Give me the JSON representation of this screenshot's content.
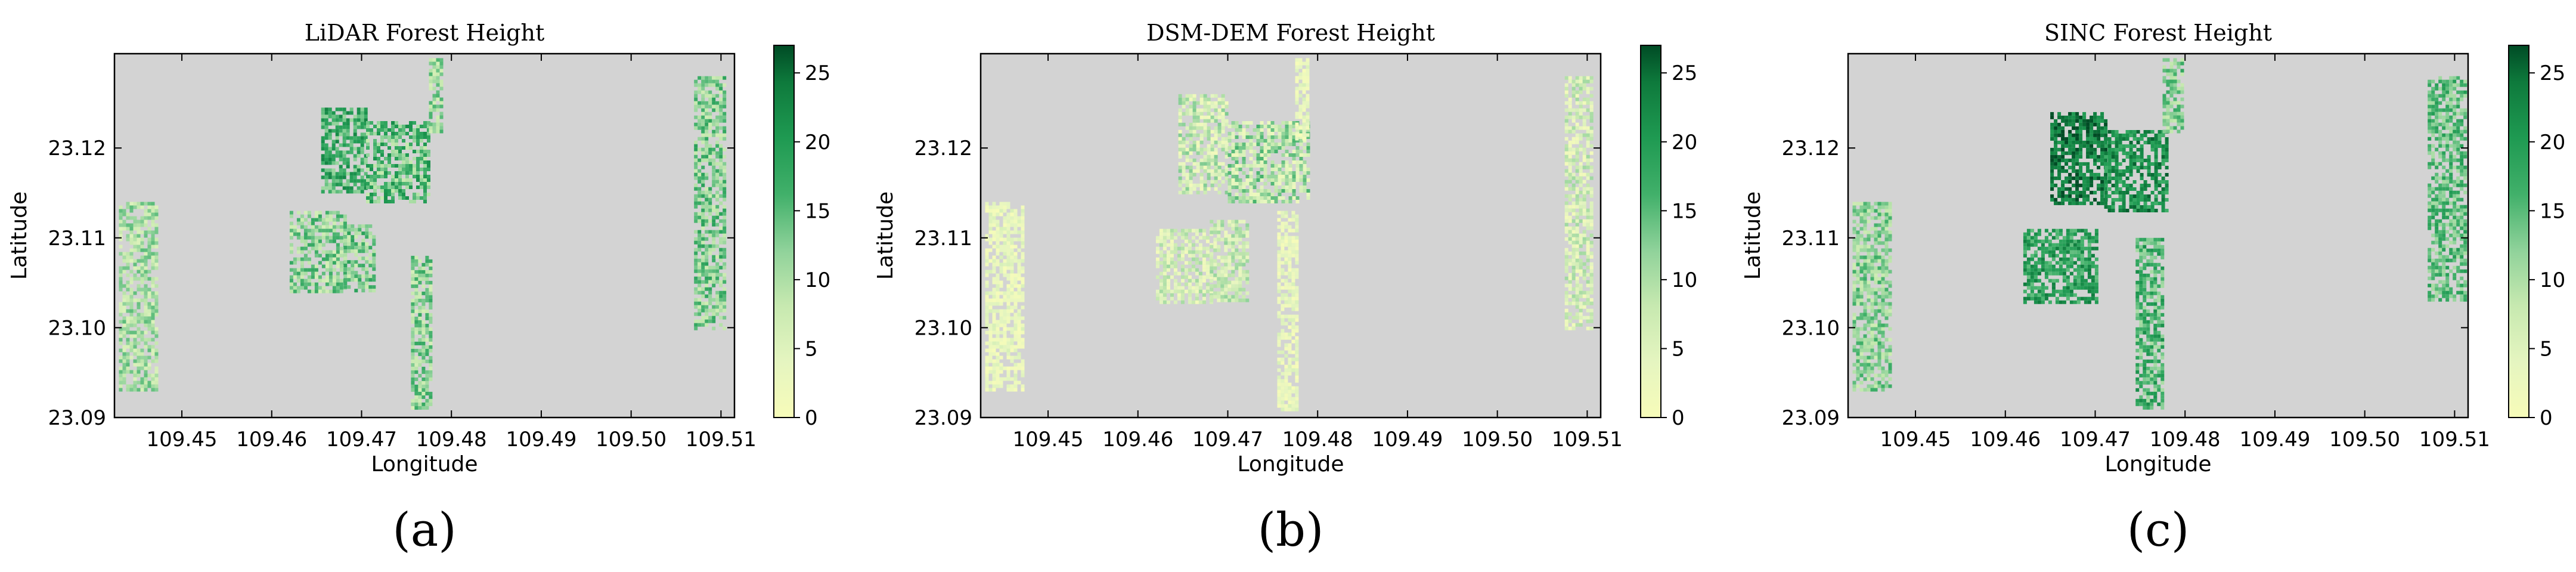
{
  "chart_data": [
    {
      "type": "heatmap",
      "panel_label": "(a)",
      "title": "LiDAR Forest Height",
      "xlabel": "Longitude",
      "ylabel": "Latitude",
      "x_ticks": [
        "109.45",
        "109.46",
        "109.47",
        "109.48",
        "109.49",
        "109.50",
        "109.51"
      ],
      "y_ticks": [
        "23.09",
        "23.10",
        "23.11",
        "23.12"
      ],
      "xlim": [
        109.4425,
        109.5115
      ],
      "ylim": [
        23.09,
        23.1305
      ],
      "background_color": "#d3d3d3",
      "colorbar": {
        "ticks": [
          "0",
          "5",
          "10",
          "15",
          "20",
          "25"
        ],
        "range": [
          0,
          27
        ],
        "colormap": "Greens"
      },
      "regions": [
        {
          "lon": [
            109.4655,
            109.4705
          ],
          "lat": [
            23.1153,
            23.1245
          ],
          "height": 17,
          "variation": 6
        },
        {
          "lon": [
            109.4705,
            109.4775
          ],
          "lat": [
            23.114,
            23.123
          ],
          "height": 15,
          "variation": 7
        },
        {
          "lon": [
            109.462,
            109.468
          ],
          "lat": [
            23.104,
            23.113
          ],
          "height": 12,
          "variation": 6
        },
        {
          "lon": [
            109.468,
            109.4715
          ],
          "lat": [
            23.104,
            23.1115
          ],
          "height": 13,
          "variation": 6
        },
        {
          "lon": [
            109.4755,
            109.4775
          ],
          "lat": [
            23.091,
            23.108
          ],
          "height": 12,
          "variation": 6
        },
        {
          "lon": [
            109.4775,
            109.479
          ],
          "lat": [
            23.122,
            23.13
          ],
          "height": 11,
          "variation": 5
        },
        {
          "lon": [
            109.507,
            109.5105
          ],
          "lat": [
            23.1,
            23.128
          ],
          "height": 13,
          "variation": 6
        },
        {
          "lon": [
            109.443,
            109.447
          ],
          "lat": [
            23.093,
            23.114
          ],
          "height": 10,
          "variation": 5
        }
      ]
    },
    {
      "type": "heatmap",
      "panel_label": "(b)",
      "title": "DSM-DEM Forest Height",
      "xlabel": "Longitude",
      "ylabel": "Latitude",
      "x_ticks": [
        "109.45",
        "109.46",
        "109.47",
        "109.48",
        "109.49",
        "109.50",
        "109.51"
      ],
      "y_ticks": [
        "23.09",
        "23.10",
        "23.11",
        "23.12"
      ],
      "xlim": [
        109.4425,
        109.5115
      ],
      "ylim": [
        23.09,
        23.1305
      ],
      "background_color": "#d3d3d3",
      "colorbar": {
        "ticks": [
          "0",
          "5",
          "10",
          "15",
          "20",
          "25"
        ],
        "range": [
          0,
          27
        ],
        "colormap": "Greens"
      },
      "regions": [
        {
          "lon": [
            109.4645,
            109.47
          ],
          "lat": [
            23.115,
            23.126
          ],
          "height": 7,
          "variation": 6
        },
        {
          "lon": [
            109.47,
            109.479
          ],
          "lat": [
            23.114,
            23.123
          ],
          "height": 9,
          "variation": 7
        },
        {
          "lon": [
            109.462,
            109.468
          ],
          "lat": [
            23.103,
            23.111
          ],
          "height": 6,
          "variation": 5
        },
        {
          "lon": [
            109.468,
            109.472
          ],
          "lat": [
            23.103,
            23.112
          ],
          "height": 7,
          "variation": 5
        },
        {
          "lon": [
            109.4755,
            109.4775
          ],
          "lat": [
            23.091,
            23.113
          ],
          "height": 3,
          "variation": 3
        },
        {
          "lon": [
            109.4775,
            109.479
          ],
          "lat": [
            23.121,
            23.13
          ],
          "height": 3,
          "variation": 3
        },
        {
          "lon": [
            109.5075,
            109.5105
          ],
          "lat": [
            23.1,
            23.128
          ],
          "height": 6,
          "variation": 5
        },
        {
          "lon": [
            109.443,
            109.447
          ],
          "lat": [
            23.093,
            23.114
          ],
          "height": 3,
          "variation": 3
        }
      ]
    },
    {
      "type": "heatmap",
      "panel_label": "(c)",
      "title": "SINC Forest Height",
      "xlabel": "Longitude",
      "ylabel": "Latitude",
      "x_ticks": [
        "109.45",
        "109.46",
        "109.47",
        "109.48",
        "109.49",
        "109.50",
        "109.51"
      ],
      "y_ticks": [
        "23.09",
        "23.10",
        "23.11",
        "23.12"
      ],
      "xlim": [
        109.4425,
        109.5115
      ],
      "ylim": [
        23.09,
        23.1305
      ],
      "background_color": "#d3d3d3",
      "colorbar": {
        "ticks": [
          "0",
          "5",
          "10",
          "15",
          "20",
          "25"
        ],
        "range": [
          0,
          27
        ],
        "colormap": "Greens"
      },
      "regions": [
        {
          "lon": [
            109.465,
            109.471
          ],
          "lat": [
            23.114,
            23.124
          ],
          "height": 24,
          "variation": 4
        },
        {
          "lon": [
            109.471,
            109.478
          ],
          "lat": [
            23.113,
            23.122
          ],
          "height": 21,
          "variation": 5
        },
        {
          "lon": [
            109.462,
            109.47
          ],
          "lat": [
            23.103,
            23.111
          ],
          "height": 19,
          "variation": 5
        },
        {
          "lon": [
            109.4745,
            109.4775
          ],
          "lat": [
            23.091,
            23.11
          ],
          "height": 16,
          "variation": 6
        },
        {
          "lon": [
            109.4775,
            109.4795
          ],
          "lat": [
            23.122,
            23.13
          ],
          "height": 13,
          "variation": 5
        },
        {
          "lon": [
            109.507,
            109.511
          ],
          "lat": [
            23.103,
            23.128
          ],
          "height": 15,
          "variation": 5
        },
        {
          "lon": [
            109.443,
            109.447
          ],
          "lat": [
            23.093,
            23.114
          ],
          "height": 12,
          "variation": 5
        }
      ]
    }
  ]
}
